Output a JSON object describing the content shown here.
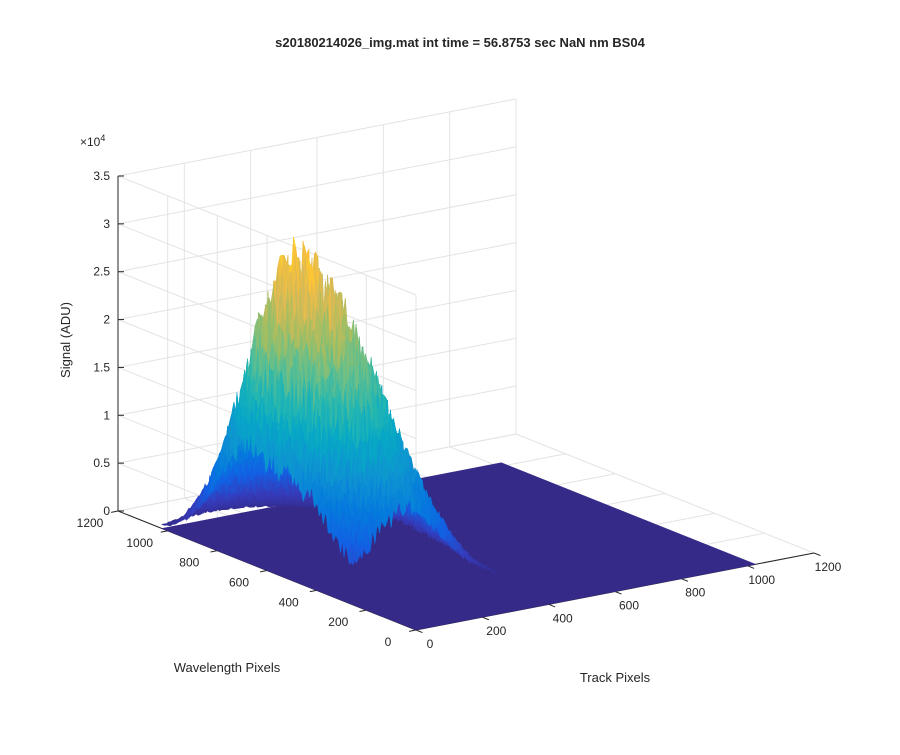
{
  "chart_data": {
    "type": "surface",
    "title": "s20180214026_img.mat int time = 56.8753 sec  NaN nm BS04",
    "xlabel": "Track Pixels",
    "ylabel": "Wavelength Pixels",
    "zlabel": "Signal (ADU)",
    "z_exponent_label": "×10",
    "z_exponent": "4",
    "xlim": [
      0,
      1200
    ],
    "ylim": [
      0,
      1200
    ],
    "zlim": [
      0,
      35000
    ],
    "x_ticks": [
      "0",
      "200",
      "400",
      "600",
      "800",
      "1000",
      "1200"
    ],
    "y_ticks": [
      "0",
      "200",
      "400",
      "600",
      "800",
      "1000",
      "1200"
    ],
    "z_ticks": [
      "0",
      "0.5",
      "1",
      "1.5",
      "2",
      "2.5",
      "3",
      "3.5"
    ],
    "data_extent": {
      "x": [
        0,
        1024
      ],
      "y": [
        0,
        1024
      ]
    },
    "baseline": 0,
    "peak": {
      "x": 150,
      "y": 680,
      "z": 28000
    },
    "grid": true,
    "colormap": "parula"
  }
}
